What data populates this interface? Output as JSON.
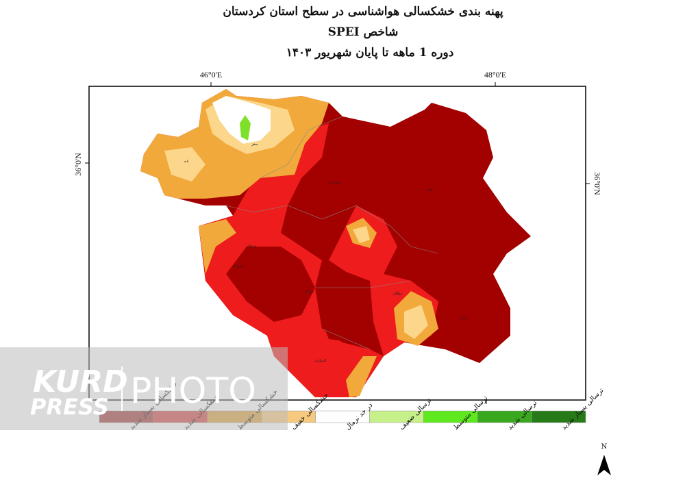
{
  "header": {
    "title": "پهنه بندی خشکسالی هواشناسی در سطح استان کردستان",
    "subtitle": "شاخص SPEI",
    "period": "دوره   1   ماهه تا پایان شهریور ۱۴۰۳"
  },
  "coordinates": {
    "lon_left": "46°0'E",
    "lon_right": "48°0'E",
    "lat_left": "36°0'N",
    "lat_right": "36°0'N"
  },
  "legend": [
    {
      "label": "خشکسالی بسیار شدید",
      "color": "#a33a3a"
    },
    {
      "label": "خشکسالی شدید",
      "color": "#d64545"
    },
    {
      "label": "خشکسالی متوسط",
      "color": "#d9a03a"
    },
    {
      "label": "خشکسالی خفیف",
      "color": "#f6c97e"
    },
    {
      "label": "در حد نرمال",
      "color": "#ffffff"
    },
    {
      "label": "ترسالی ضعیف",
      "color": "#c6f08a"
    },
    {
      "label": "ترسالی متوسط",
      "color": "#5ee81e"
    },
    {
      "label": "ترسالی شدید",
      "color": "#3aa81e"
    },
    {
      "label": "ترسالی بسیار شدید",
      "color": "#267a17"
    }
  ],
  "cities": [
    "سقز",
    "بانه",
    "مریوان",
    "سروآباد",
    "دیواندره",
    "بیجار",
    "سنندج",
    "دهگلان",
    "قروه",
    "کامیاران"
  ],
  "watermark": {
    "brand": "KURD",
    "sub": "PRESS",
    "photo": "PHOTO"
  },
  "north": "N"
}
